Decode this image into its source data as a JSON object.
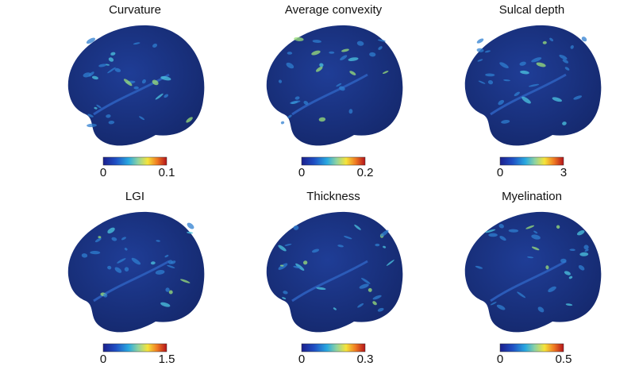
{
  "panels": [
    {
      "title": "Curvature",
      "scale_min": 0,
      "scale_max": 0.1
    },
    {
      "title": "Average convexity",
      "scale_min": 0,
      "scale_max": 0.2
    },
    {
      "title": "Sulcal depth",
      "scale_min": 0,
      "scale_max": 3
    },
    {
      "title": "LGI",
      "scale_min": 0,
      "scale_max": 1.5
    },
    {
      "title": "Thickness",
      "scale_min": 0,
      "scale_max": 0.3
    },
    {
      "title": "Myelination",
      "scale_min": 0,
      "scale_max": 0.5
    }
  ]
}
